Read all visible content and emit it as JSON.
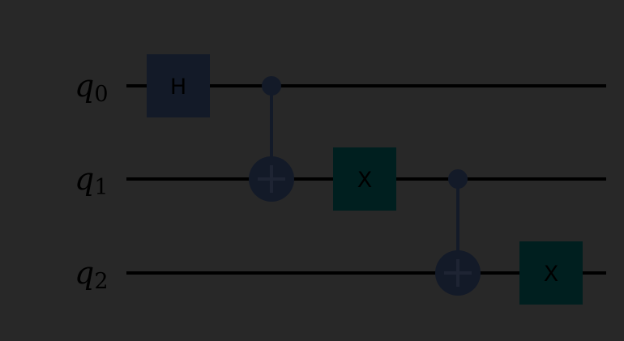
{
  "circuit": {
    "background": "#282828",
    "wire_color": "#000000",
    "qubits": [
      {
        "name": "q",
        "index": "0"
      },
      {
        "name": "q",
        "index": "1"
      },
      {
        "name": "q",
        "index": "2"
      }
    ],
    "operations": [
      {
        "type": "gate",
        "label": "H",
        "qubit": 0,
        "column": 0,
        "color": "#131a28"
      },
      {
        "type": "cnot",
        "control": 0,
        "target": 1,
        "column": 1,
        "color": "#131a28"
      },
      {
        "type": "gate",
        "label": "X",
        "qubit": 1,
        "column": 2,
        "color": "#001f1f"
      },
      {
        "type": "cnot",
        "control": 1,
        "target": 2,
        "column": 3,
        "color": "#131a28"
      },
      {
        "type": "gate",
        "label": "X",
        "qubit": 2,
        "column": 4,
        "color": "#001f1f"
      }
    ]
  }
}
